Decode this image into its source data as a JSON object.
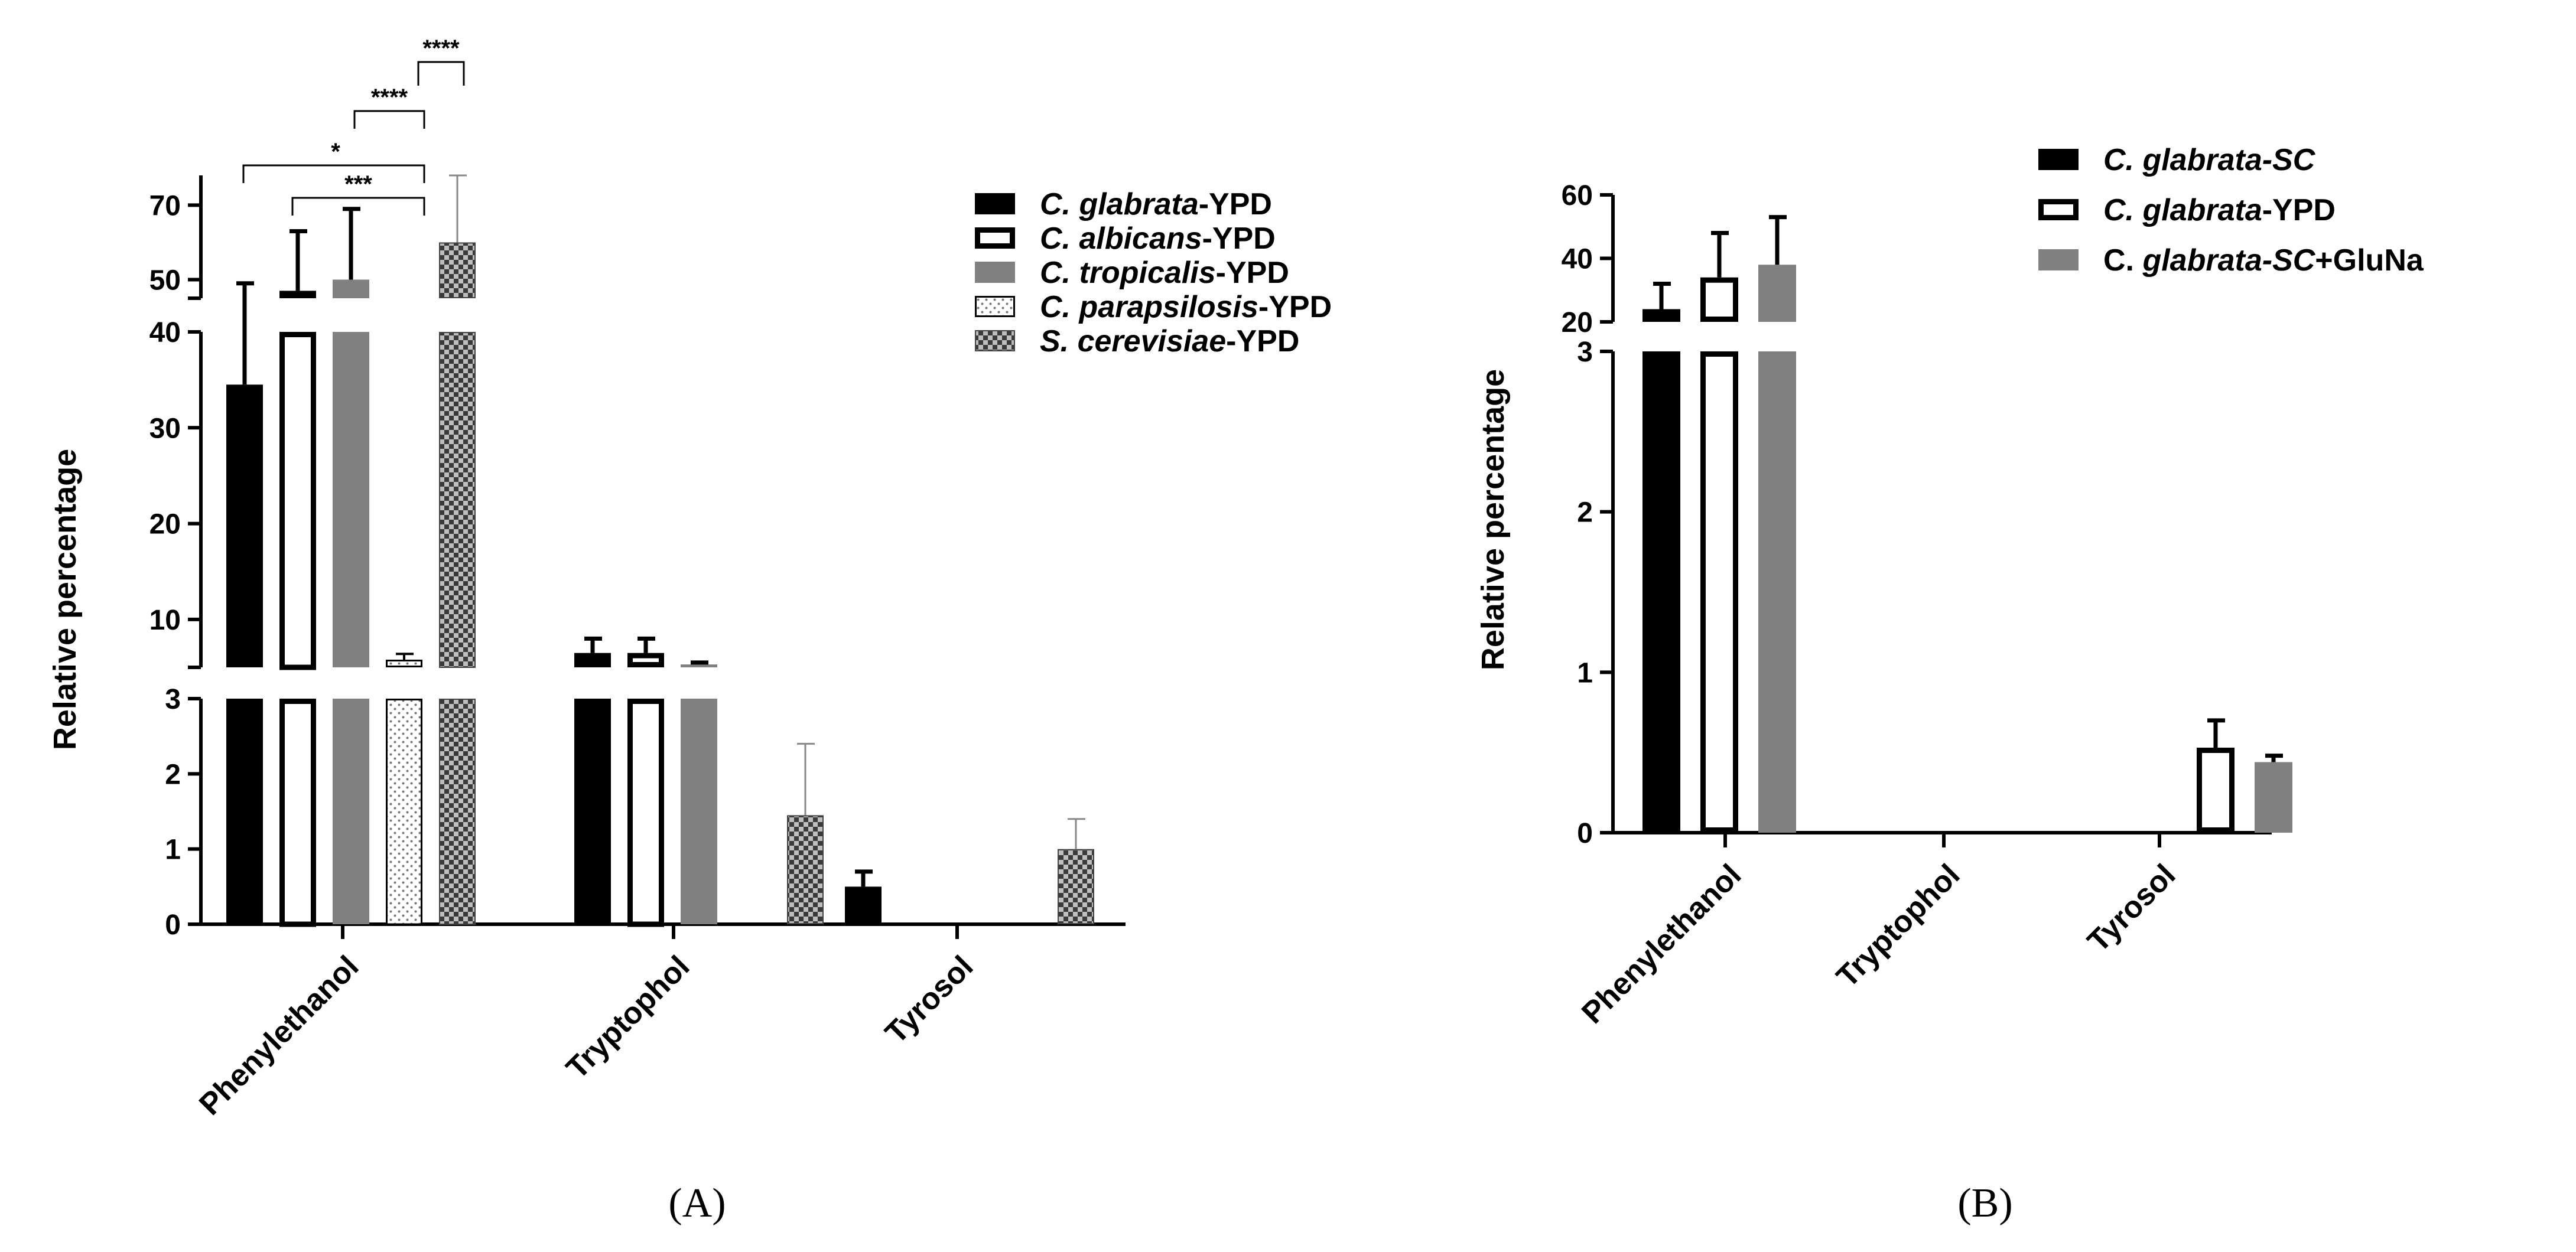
{
  "chart_data": [
    {
      "panel": "A",
      "type": "bar",
      "ylabel": "Relative percentage",
      "categories": [
        "Phenylethanol",
        "Tryptophol",
        "Tyrosol"
      ],
      "y_segments": [
        {
          "range": [
            0,
            3
          ],
          "ticks": [
            "0",
            "1",
            "2",
            "3"
          ]
        },
        {
          "range": [
            5,
            40
          ],
          "ticks": [
            "10",
            "20",
            "30",
            "40"
          ]
        },
        {
          "range": [
            45,
            78
          ],
          "ticks": [
            "50",
            "70"
          ]
        }
      ],
      "series": [
        {
          "name_italic": "C. glabrata",
          "name_suffix": "-YPD",
          "style": "solid-black",
          "values": [
            34.5,
            6.5,
            0.5
          ],
          "errors": [
            14.5,
            1.5,
            0.2
          ]
        },
        {
          "name_italic": "C. albicans",
          "name_suffix": "-YPD",
          "style": "open-black",
          "values": [
            47,
            6.5,
            0
          ],
          "errors": [
            16,
            1.5,
            0
          ]
        },
        {
          "name_italic": "C. tropicalis",
          "name_suffix": "-YPD",
          "style": "solid-gray",
          "values": [
            50,
            5.3,
            0
          ],
          "errors": [
            19,
            0.2,
            0
          ]
        },
        {
          "name_italic": "C. parapsilosis",
          "name_suffix": "-YPD",
          "style": "dotted",
          "values": [
            5.8,
            0,
            0
          ],
          "errors": [
            0.6,
            0,
            0
          ]
        },
        {
          "name_italic": "S. cerevisiae",
          "name_suffix": "-YPD",
          "style": "checkered",
          "values": [
            60,
            1.45,
            1.0
          ],
          "errors": [
            18,
            0.95,
            0.4
          ]
        }
      ],
      "significance": [
        {
          "from_series": 0,
          "to_series": 3,
          "label": "*"
        },
        {
          "from_series": 1,
          "to_series": 3,
          "label": "***"
        },
        {
          "from_series": 3,
          "to_series": 3.5,
          "label": "****"
        },
        {
          "from_series": 4,
          "to_series": 4.6,
          "label": "****"
        }
      ],
      "panel_label": "A"
    },
    {
      "panel": "B",
      "type": "bar",
      "ylabel": "Relative percentage",
      "categories": [
        "Phenylethanol",
        "Tryptophol",
        "Tyrosol"
      ],
      "y_segments": [
        {
          "range": [
            0,
            3
          ],
          "ticks": [
            "0",
            "1",
            "2",
            "3"
          ]
        },
        {
          "range": [
            20,
            60
          ],
          "ticks": [
            "20",
            "40",
            "60"
          ]
        }
      ],
      "series": [
        {
          "name_italic": "C. glabrata-SC",
          "name_suffix": "",
          "name_prefix": "",
          "style": "solid-black",
          "values": [
            24,
            0,
            0
          ],
          "errors": [
            8,
            0,
            0
          ]
        },
        {
          "name_italic": "C. glabrata",
          "name_suffix": "-YPD",
          "name_prefix": "",
          "style": "open-black",
          "values": [
            34,
            0,
            0.53
          ],
          "errors": [
            14,
            0,
            0.17
          ]
        },
        {
          "name_italic": "glabrata-SC",
          "name_prefix": "C. ",
          "name_suffix": "+GluNa",
          "style": "solid-gray",
          "values": [
            38,
            0,
            0.44
          ],
          "errors": [
            15,
            0,
            0.04
          ]
        }
      ],
      "panel_label": "B"
    }
  ]
}
